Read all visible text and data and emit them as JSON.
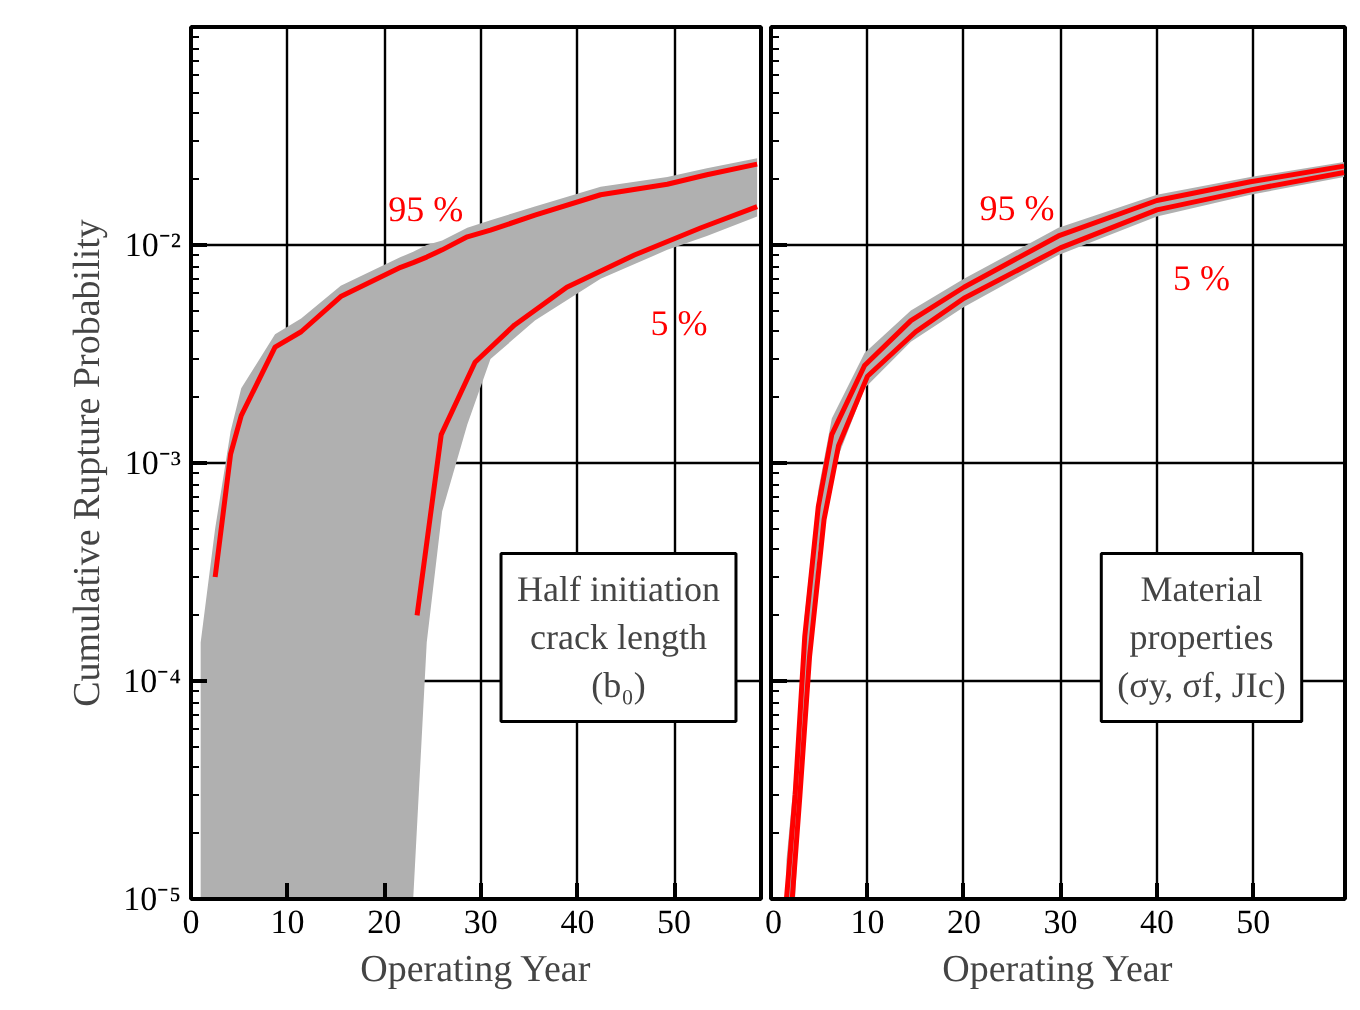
{
  "chart_data": [
    {
      "type": "line",
      "ylabel": "Cumulative Rupture Probability",
      "xlabel": "Operating Year",
      "log": "y",
      "grid": true,
      "xlim": [
        0,
        59
      ],
      "xticks": [
        0,
        10,
        20,
        30,
        40,
        50
      ],
      "ylim": [
        1e-05,
        0.1
      ],
      "yticks": [
        {
          "value": 1e-05,
          "label": "10⁻⁵"
        },
        {
          "value": 0.0001,
          "label": "10⁻⁴"
        },
        {
          "value": 0.001,
          "label": "10⁻³"
        },
        {
          "value": 0.01,
          "label": "10⁻²"
        }
      ],
      "annotations": [
        "Half initiation\ncrack length\n(b₀)"
      ],
      "series": [
        {
          "name": "95 %",
          "color": "#ff0000",
          "x": [
            1,
            2.5,
            4.1,
            5.2,
            8.7,
            11.4,
            15.5,
            21.7,
            23,
            24.4,
            26,
            28.6,
            31,
            35.6,
            42.4,
            49.3,
            53.4,
            58.6
          ],
          "values": [
            null,
            0.0003,
            0.0011,
            0.00165,
            0.0034,
            0.004,
            0.0058,
            0.0079,
            0.0083,
            0.0088,
            0.0095,
            0.0109,
            0.0117,
            0.0137,
            0.017,
            0.019,
            0.021,
            0.0235
          ],
          "upper": [
            0.00015,
            0.0005,
            0.0014,
            0.0022,
            0.0039,
            0.0046,
            0.0065,
            0.0088,
            0.0093,
            0.01,
            0.0105,
            0.012,
            0.013,
            0.015,
            0.0185,
            0.0205,
            0.0225,
            0.025
          ],
          "lower": [
            1e-05,
            1e-05,
            1e-05,
            1e-05,
            1e-05,
            1e-05,
            1e-05,
            1e-05,
            1e-05,
            0.00015,
            0.0006,
            0.0015,
            0.003,
            0.0045,
            0.007,
            0.0095,
            0.011,
            0.0135
          ]
        },
        {
          "name": "5 %",
          "color": "#ff0000",
          "x": [
            23.4,
            25.9,
            29.4,
            33.5,
            38.9,
            45.9,
            52.8,
            58.6
          ],
          "values": [
            0.0002,
            0.00135,
            0.0029,
            0.0043,
            0.0064,
            0.009,
            0.012,
            0.015
          ]
        }
      ]
    },
    {
      "type": "line",
      "xlabel": "Operating Year",
      "log": "y",
      "grid": true,
      "tick_labels": "x",
      "xlim": [
        0,
        59.5
      ],
      "xticks": [
        0,
        10,
        20,
        30,
        40,
        50
      ],
      "ylim": [
        1e-05,
        0.1
      ],
      "yticks": [
        {
          "value": 1e-05,
          "label": null
        },
        {
          "value": 0.0001,
          "label": null
        },
        {
          "value": 0.001,
          "label": null
        },
        {
          "value": 0.01,
          "label": null
        }
      ],
      "annotations": [
        "Material\nproperties\n(σy, σf, JIc)"
      ],
      "series": [
        {
          "name": "95 %",
          "color": "#ff0000",
          "x": [
            1.6,
            2.5,
            3.5,
            4.9,
            6.3,
            9.7,
            14.5,
            20,
            29.8,
            40,
            49.7,
            59.4
          ],
          "values": [
            1e-05,
            3e-05,
            0.00016,
            0.00063,
            0.00135,
            0.0028,
            0.0045,
            0.0064,
            0.011,
            0.016,
            0.0195,
            0.023
          ],
          "upper": [
            1.5e-05,
            4e-05,
            0.0002,
            0.00075,
            0.0016,
            0.0032,
            0.005,
            0.007,
            0.012,
            0.017,
            0.0205,
            0.024
          ],
          "lower": [
            1e-05,
            1e-05,
            8e-05,
            0.0004,
            0.0009,
            0.0022,
            0.0036,
            0.0052,
            0.009,
            0.0135,
            0.017,
            0.0205
          ]
        },
        {
          "name": "5 %",
          "color": "#ff0000",
          "x": [
            2.2,
            3,
            4,
            5.5,
            7,
            10,
            15,
            20,
            30,
            40,
            50,
            59.4
          ],
          "values": [
            1e-05,
            3e-05,
            0.00013,
            0.00055,
            0.0012,
            0.0025,
            0.004,
            0.0057,
            0.0097,
            0.0145,
            0.018,
            0.0215
          ]
        }
      ]
    }
  ]
}
